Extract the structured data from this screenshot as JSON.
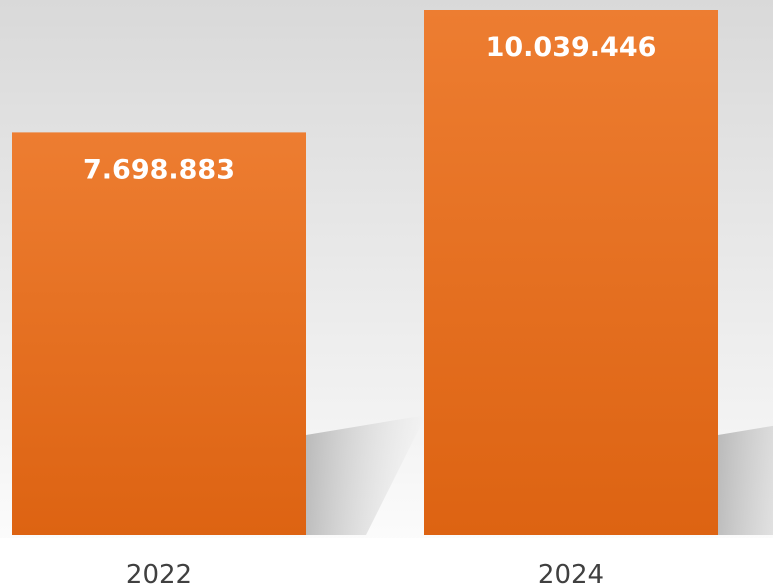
{
  "chart_data": {
    "type": "bar",
    "categories": [
      "2022",
      "2024"
    ],
    "values": [
      7698883,
      10039446
    ],
    "value_labels": [
      "7.698.883",
      "10.039.446"
    ],
    "title": "",
    "xlabel": "",
    "ylabel": "",
    "grid": false,
    "legend": "none"
  },
  "colors": {
    "bar_top": "#ed7d31",
    "bar_bottom": "#dd6312",
    "background_top": "#d9d9d9",
    "background_bottom": "#ffffff",
    "value_text": "#ffffff",
    "tick_text": "#404040"
  }
}
